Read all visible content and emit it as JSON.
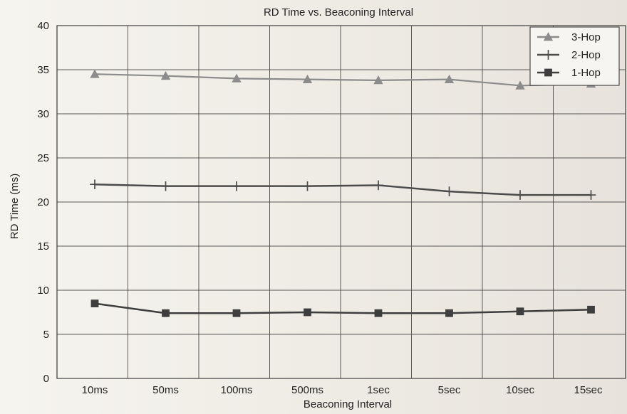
{
  "chart_data": {
    "type": "line",
    "title": "RD Time vs. Beaconing Interval",
    "xlabel": "Beaconing Interval",
    "ylabel": "RD Time (ms)",
    "categories": [
      "10ms",
      "50ms",
      "100ms",
      "500ms",
      "1sec",
      "5sec",
      "10sec",
      "15sec"
    ],
    "ylim": [
      0,
      40
    ],
    "yticks": [
      0,
      5,
      10,
      15,
      20,
      25,
      30,
      35,
      40
    ],
    "grid": true,
    "legend_position": "top-right",
    "series": [
      {
        "name": "3-Hop",
        "marker": "triangle",
        "color": "#8c8c8c",
        "values": [
          34.5,
          34.3,
          34.0,
          33.9,
          33.8,
          33.9,
          33.2,
          33.4
        ]
      },
      {
        "name": "2-Hop",
        "marker": "plus",
        "color": "#4b4b4b",
        "values": [
          22.0,
          21.8,
          21.8,
          21.8,
          21.9,
          21.2,
          20.8,
          20.8
        ]
      },
      {
        "name": "1-Hop",
        "marker": "square",
        "color": "#3e3e3e",
        "values": [
          8.5,
          7.4,
          7.4,
          7.5,
          7.4,
          7.4,
          7.6,
          7.8
        ]
      }
    ]
  }
}
